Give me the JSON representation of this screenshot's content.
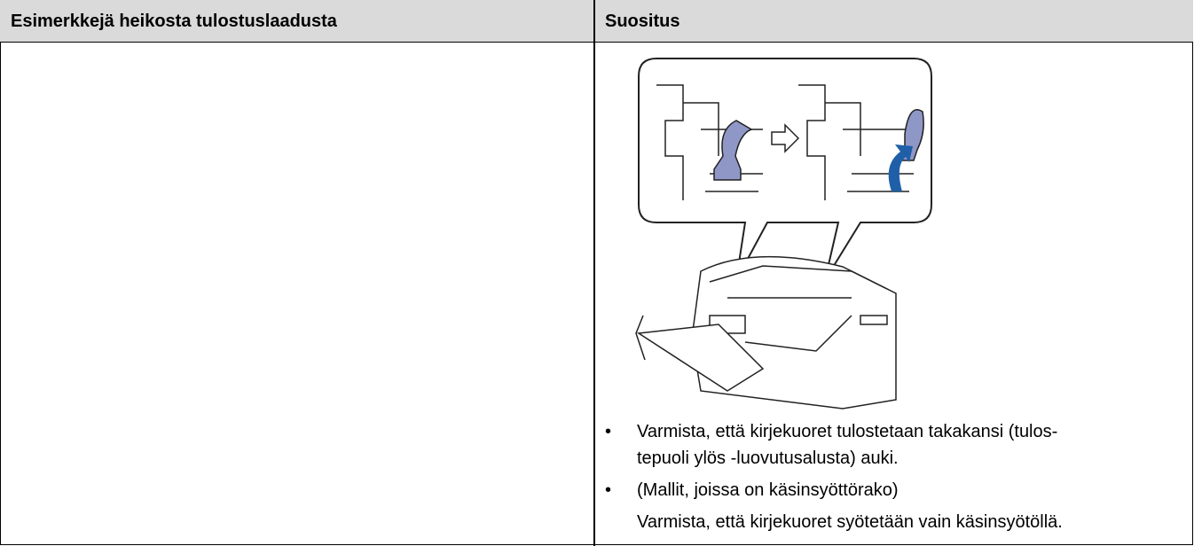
{
  "table": {
    "headers": [
      "Esimerkkejä heikosta tulostuslaadusta",
      "Suositus"
    ],
    "bullets": [
      {
        "lines": [
          "Varmista, että kirjekuoret tulostetaan takakansi (tulos-",
          "tepuoli ylös -luovutusalusta) auki."
        ]
      },
      {
        "lines": [
          "(Mallit, joissa on käsinsyöttörako)"
        ],
        "note": "Varmista, että kirjekuoret syötetään vain käsinsyötöllä."
      }
    ]
  }
}
